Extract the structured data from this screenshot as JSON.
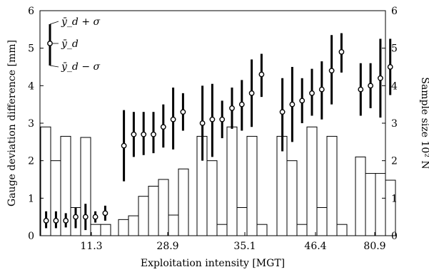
{
  "chart_data": {
    "type": "bar",
    "xlabel": "Exploitation intensity [MGT]",
    "ylabel": "Gauge deviation difference [mm]",
    "ylabel_right": "Sample size 10² N",
    "ylim": [
      0,
      6
    ],
    "ylim_right": [
      0,
      6
    ],
    "yticks": [
      "0",
      "1",
      "2",
      "3",
      "4",
      "5",
      "6"
    ],
    "groups": [
      "11.3",
      "28.9",
      "35.1",
      "46.4",
      "80.9"
    ],
    "sample_size_bars": [
      [
        2.9,
        2.0,
        2.65,
        0.75,
        2.62,
        0.3,
        0.3
      ],
      [
        0.43,
        0.53,
        1.05,
        1.32,
        1.5,
        0.55,
        1.78
      ],
      [
        2.65,
        2.0,
        0.3,
        2.9,
        0.75,
        2.65,
        0.3
      ],
      [
        2.65,
        2.0,
        0.3,
        2.9,
        0.75,
        2.65,
        0.3
      ],
      [
        2.1,
        1.66,
        1.66,
        1.48
      ]
    ],
    "error_bars": [
      [
        {
          "mean": 0.4,
          "low": 0.2,
          "high": 0.65
        },
        {
          "mean": 0.4,
          "low": 0.2,
          "high": 0.65
        },
        {
          "mean": 0.4,
          "low": 0.22,
          "high": 0.6
        },
        {
          "mean": 0.5,
          "low": 0.2,
          "high": 0.75
        },
        {
          "mean": 0.5,
          "low": 0.15,
          "high": 0.85
        },
        {
          "mean": 0.5,
          "low": 0.35,
          "high": 0.65
        },
        {
          "mean": 0.6,
          "low": 0.4,
          "high": 0.8
        }
      ],
      [
        {
          "mean": 2.4,
          "low": 1.45,
          "high": 3.35
        },
        {
          "mean": 2.7,
          "low": 2.1,
          "high": 3.3
        },
        {
          "mean": 2.7,
          "low": 2.15,
          "high": 3.3
        },
        {
          "mean": 2.7,
          "low": 2.2,
          "high": 3.3
        },
        {
          "mean": 2.9,
          "low": 2.35,
          "high": 3.5
        },
        {
          "mean": 3.1,
          "low": 2.3,
          "high": 3.95
        },
        {
          "mean": 3.3,
          "low": 2.8,
          "high": 3.8
        }
      ],
      [
        {
          "mean": 3.0,
          "low": 2.0,
          "high": 4.0
        },
        {
          "mean": 3.1,
          "low": 2.1,
          "high": 4.05
        },
        {
          "mean": 3.1,
          "low": 2.6,
          "high": 3.6
        },
        {
          "mean": 3.4,
          "low": 2.85,
          "high": 3.95
        },
        {
          "mean": 3.5,
          "low": 2.8,
          "high": 4.15
        },
        {
          "mean": 3.8,
          "low": 2.9,
          "high": 4.7
        },
        {
          "mean": 4.3,
          "low": 3.7,
          "high": 4.85
        }
      ],
      [
        {
          "mean": 3.3,
          "low": 2.25,
          "high": 4.2
        },
        {
          "mean": 3.5,
          "low": 2.5,
          "high": 4.5
        },
        {
          "mean": 3.6,
          "low": 3.0,
          "high": 4.2
        },
        {
          "mean": 3.8,
          "low": 3.2,
          "high": 4.45
        },
        {
          "mean": 3.9,
          "low": 3.1,
          "high": 4.65
        },
        {
          "mean": 4.4,
          "low": 3.5,
          "high": 5.35
        },
        {
          "mean": 4.9,
          "low": 4.35,
          "high": 5.4
        }
      ],
      [
        {
          "mean": 3.9,
          "low": 3.2,
          "high": 4.6
        },
        {
          "mean": 4.0,
          "low": 3.4,
          "high": 4.6
        },
        {
          "mean": 4.2,
          "low": 3.15,
          "high": 5.25
        },
        {
          "mean": 4.5,
          "low": 3.75,
          "high": 5.25
        }
      ]
    ],
    "legend": {
      "upper": "ȳ_d + σ",
      "mid": "ȳ_d",
      "lower": "ȳ_d − σ",
      "position": "top-left"
    }
  }
}
